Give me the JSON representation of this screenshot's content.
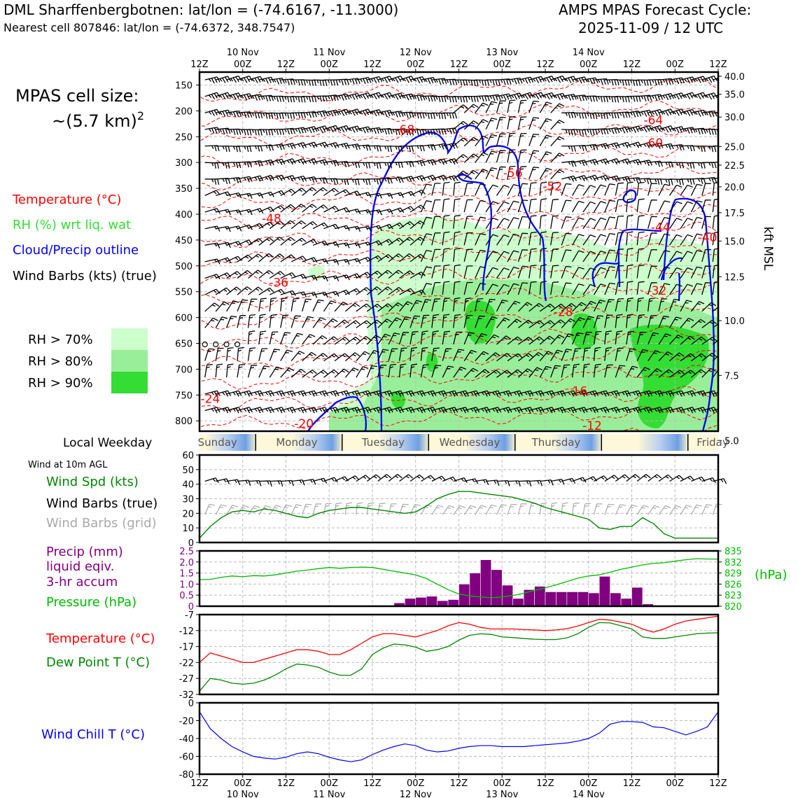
{
  "header": {
    "station": "DML Sharffenbergbotnen: lat/lon = (-74.6167, -11.3000)",
    "cell": "Nearest cell 807846: lat/lon = (-74.6372, 348.7547)",
    "cycle_title": "AMPS MPAS Forecast Cycle:",
    "cycle_time": "2025-11-09 / 12 UTC"
  },
  "legend": {
    "cell_size_label": "MPAS cell size:",
    "cell_size_value": "~(5.7 km)",
    "cell_size_exp": "2",
    "temperature": "Temperature (°C)",
    "rh": "RH (%) wrt liq. wat",
    "cloud": "Cloud/Precip outline",
    "wind": "Wind Barbs (kts) (true)",
    "rh70": "RH > 70%",
    "rh80": "RH > 80%",
    "rh90": "RH > 90%",
    "local_weekday": "Local Weekday",
    "wind10m_title": "Wind at 10m AGL",
    "wind_spd": "Wind Spd (kts)",
    "wind_barbs_true": "Wind Barbs (true)",
    "wind_barbs_grid": "Wind Barbs (grid)",
    "precip_l1": "Precip (mm)",
    "precip_l2": "liquid eqiv.",
    "precip_l3": "3-hr accum",
    "pressure": "Pressure (hPa)",
    "pressure_unit": "(hPa)",
    "temp2": "Temperature (°C)",
    "dewpoint": "Dew Point T (°C)",
    "windchill": "Wind Chill T (°C)"
  },
  "colors": {
    "temperature": "#ff0000",
    "rh_text": "#33dd33",
    "cloud": "#0000ff",
    "green": "#008800",
    "gray": "#aaaaaa",
    "purple": "#800080",
    "rh70": "#ccffcc",
    "rh80": "#99ee99",
    "rh90": "#33dd33"
  },
  "chart_data": [
    {
      "type": "heatmap",
      "name": "time-height cross section",
      "x_hours": [
        0,
        144
      ],
      "time_ticks": [
        "12Z",
        "00Z",
        "12Z",
        "00Z",
        "12Z",
        "00Z",
        "12Z",
        "00Z",
        "12Z",
        "00Z",
        "12Z",
        "00Z",
        "12Z"
      ],
      "date_ticks": [
        "10 Nov",
        "11 Nov",
        "12 Nov",
        "13 Nov",
        "14 Nov"
      ],
      "pressure_ticks": [
        150,
        200,
        250,
        300,
        350,
        400,
        450,
        500,
        550,
        600,
        650,
        700,
        750,
        800
      ],
      "pressure_range_hpa": [
        820,
        125
      ],
      "height_ticks": [
        "40.0",
        "35.0",
        "30.0",
        "25.0",
        "22.5",
        "20.0",
        "17.5",
        "15.0",
        "12.5",
        "10.0",
        "7.5",
        "5.0"
      ],
      "height_axis_label": "kft MSL",
      "height_tick_pressures": [
        133,
        168,
        212,
        269,
        305,
        347,
        397,
        452,
        521,
        606,
        712,
        838
      ],
      "temperature_labels": [
        {
          "text": "-68",
          "hour": 57,
          "p": 236
        },
        {
          "text": "-64",
          "hour": 126,
          "p": 218
        },
        {
          "text": "-60",
          "hour": 126,
          "p": 262
        },
        {
          "text": "-56",
          "hour": 87,
          "p": 320
        },
        {
          "text": "-52",
          "hour": 98,
          "p": 346
        },
        {
          "text": "-48",
          "hour": 20,
          "p": 408
        },
        {
          "text": "-44",
          "hour": 128,
          "p": 425
        },
        {
          "text": "-40",
          "hour": 141,
          "p": 445
        },
        {
          "text": "-36",
          "hour": 22,
          "p": 532
        },
        {
          "text": "-32",
          "hour": 127,
          "p": 548
        },
        {
          "text": "-28",
          "hour": 101,
          "p": 589
        },
        {
          "text": "-24",
          "hour": 3,
          "p": 757
        },
        {
          "text": "-20",
          "hour": 29,
          "p": 805
        },
        {
          "text": "-16",
          "hour": 105,
          "p": 742
        },
        {
          "text": "-12",
          "hour": 109,
          "p": 809
        }
      ],
      "weekday_labels": [
        "Sunday",
        "Monday",
        "Tuesday",
        "Wednesday",
        "Thursday",
        "Friday"
      ]
    },
    {
      "type": "line",
      "name": "10m wind",
      "x_hours": [
        0,
        3,
        6,
        9,
        12,
        15,
        18,
        21,
        24,
        27,
        30,
        33,
        36,
        39,
        42,
        45,
        48,
        51,
        54,
        57,
        60,
        63,
        66,
        69,
        72,
        75,
        78,
        81,
        84,
        87,
        90,
        93,
        96,
        99,
        102,
        105,
        108,
        111,
        114,
        117,
        120,
        123,
        126,
        129,
        132,
        135,
        138,
        141,
        144
      ],
      "wind_speed_kts": [
        3,
        11,
        17,
        21,
        22,
        21,
        23,
        22,
        20,
        18,
        17,
        20,
        22,
        23,
        24,
        24,
        23,
        22,
        21,
        20,
        21,
        25,
        30,
        33,
        35,
        35,
        34,
        33,
        32,
        31,
        29,
        27,
        24,
        22,
        20,
        18,
        16,
        10,
        9,
        11,
        11,
        17,
        13,
        6,
        3,
        3,
        3,
        3,
        3
      ],
      "ylim": [
        0,
        60
      ],
      "yticks": [
        0,
        10,
        20,
        30,
        40,
        50,
        60
      ]
    },
    {
      "type": "bar",
      "name": "precipitation and pressure",
      "precip_bins_start_hour": [
        54,
        57,
        60,
        63,
        66,
        69,
        72,
        75,
        78,
        81,
        84,
        87,
        90,
        93,
        96,
        99,
        102,
        105,
        108,
        111,
        114,
        117,
        120,
        123,
        126,
        129,
        132,
        135
      ],
      "precip_mm": [
        0.15,
        0.35,
        0.4,
        0.45,
        0.25,
        0.3,
        1.0,
        1.5,
        2.1,
        1.65,
        0.95,
        0.35,
        0.75,
        0.9,
        0.65,
        0.65,
        0.65,
        0.65,
        0.6,
        1.35,
        0.6,
        0.35,
        0.85,
        0.1,
        0.0,
        0.0,
        0.0,
        0.0
      ],
      "precip_ylim": [
        0,
        2.5
      ],
      "precip_yticks": [
        "0",
        "0.5",
        "1.0",
        "1.5",
        "2.0",
        "2.5"
      ],
      "pressure_hours": [
        0,
        3,
        6,
        9,
        12,
        15,
        18,
        21,
        24,
        27,
        30,
        33,
        36,
        39,
        42,
        45,
        48,
        51,
        54,
        57,
        60,
        63,
        66,
        69,
        72,
        75,
        78,
        81,
        84,
        87,
        90,
        93,
        96,
        99,
        102,
        105,
        108,
        111,
        114,
        117,
        120,
        123,
        126,
        129,
        132,
        135,
        138,
        141,
        144
      ],
      "pressure_hpa": [
        827.2,
        827.3,
        827.8,
        828.2,
        828.0,
        828.3,
        828.2,
        828.5,
        829.0,
        829.5,
        829.8,
        830.2,
        830.5,
        830.3,
        830.5,
        830.6,
        830.5,
        830.0,
        829.5,
        829.0,
        828.5,
        827.5,
        826.0,
        824.5,
        823.3,
        822.8,
        822.5,
        822.3,
        822.5,
        822.9,
        823.5,
        824.3,
        825.0,
        825.8,
        826.7,
        827.6,
        828.2,
        828.5,
        829.2,
        830.0,
        830.6,
        831.2,
        831.6,
        831.8,
        832.2,
        832.6,
        832.9,
        832.8,
        832.8
      ],
      "pressure_ylim": [
        820,
        835
      ],
      "pressure_yticks": [
        "820",
        "823",
        "826",
        "829",
        "832",
        "835"
      ]
    },
    {
      "type": "line",
      "name": "temperature and dew point",
      "x_hours": [
        0,
        3,
        6,
        9,
        12,
        15,
        18,
        21,
        24,
        27,
        30,
        33,
        36,
        39,
        42,
        45,
        48,
        51,
        54,
        57,
        60,
        63,
        66,
        69,
        72,
        75,
        78,
        81,
        84,
        87,
        90,
        93,
        96,
        99,
        102,
        105,
        108,
        111,
        114,
        117,
        120,
        123,
        126,
        129,
        132,
        135,
        138,
        141,
        144
      ],
      "series": [
        {
          "name": "Temperature",
          "values": [
            -22,
            -19,
            -20,
            -21,
            -22,
            -22,
            -21,
            -20,
            -19,
            -18,
            -18,
            -18.5,
            -19.5,
            -19.5,
            -18,
            -16,
            -14,
            -13,
            -13,
            -13.5,
            -14,
            -13,
            -12,
            -10.5,
            -9.5,
            -10,
            -11,
            -11.5,
            -11.5,
            -11.5,
            -11.7,
            -11.8,
            -12,
            -11.8,
            -11.4,
            -10.6,
            -9.5,
            -8.5,
            -8.7,
            -9.4,
            -10,
            -11.5,
            -12.5,
            -11.5,
            -10,
            -9,
            -8.5,
            -8,
            -7.5
          ]
        },
        {
          "name": "Dew Point",
          "values": [
            -31,
            -27,
            -27.5,
            -28.5,
            -28.8,
            -28.5,
            -27.5,
            -26,
            -24,
            -22.5,
            -22.8,
            -23.5,
            -25,
            -26,
            -26,
            -24,
            -19.5,
            -17.5,
            -16.2,
            -16.5,
            -17.2,
            -18.5,
            -18,
            -17,
            -15,
            -13.5,
            -13,
            -13.2,
            -14,
            -14.2,
            -14.5,
            -14.7,
            -14.8,
            -14.8,
            -14.3,
            -13,
            -11,
            -9.5,
            -9.6,
            -10.5,
            -11.5,
            -14,
            -14.5,
            -14.5,
            -14,
            -13.5,
            -13,
            -12.8,
            -12.7
          ]
        }
      ],
      "ylim": [
        -32,
        -7
      ],
      "yticks": [
        "-7",
        "-12",
        "-17",
        "-22",
        "-27",
        "-32"
      ]
    },
    {
      "type": "line",
      "name": "wind chill",
      "x_hours": [
        0,
        3,
        6,
        9,
        12,
        15,
        18,
        21,
        24,
        27,
        30,
        33,
        36,
        39,
        42,
        45,
        48,
        51,
        54,
        57,
        60,
        63,
        66,
        69,
        72,
        75,
        78,
        81,
        84,
        87,
        90,
        93,
        96,
        99,
        102,
        105,
        108,
        111,
        114,
        117,
        120,
        123,
        126,
        129,
        132,
        135,
        138,
        141,
        144
      ],
      "values": [
        -10,
        -29,
        -40,
        -49,
        -55,
        -60,
        -62,
        -63,
        -61,
        -57,
        -55,
        -57,
        -61,
        -64,
        -66,
        -64,
        -58,
        -53,
        -49,
        -46,
        -48,
        -53,
        -55,
        -54,
        -51,
        -49,
        -48,
        -48,
        -49,
        -49,
        -49,
        -48,
        -47,
        -46,
        -45,
        -43,
        -40,
        -34,
        -24,
        -21,
        -21,
        -22,
        -27,
        -28,
        -32,
        -36,
        -32,
        -27,
        -10
      ],
      "ylim": [
        -80,
        0
      ],
      "yticks": [
        "0",
        "-20",
        "-40",
        "-60",
        "-80"
      ]
    }
  ]
}
